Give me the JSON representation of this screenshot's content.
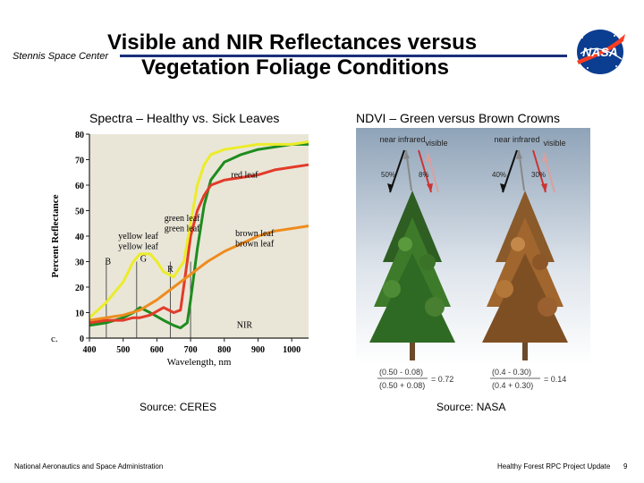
{
  "header": {
    "center": "Stennis Space Center",
    "title_line1": "Visible and NIR Reflectances versus",
    "title_line2": "Vegetation Foliage Conditions",
    "logo_text": "NASA"
  },
  "left_panel": {
    "caption": "Spectra – Healthy vs. Sick Leaves",
    "source": "Source: CERES"
  },
  "right_panel": {
    "caption": "NDVI – Green versus Brown Crowns",
    "source": "Source: NASA",
    "green": {
      "nir_label": "near infrared",
      "vis_label": "visible",
      "nir_pct": "50%",
      "vis_pct": "8%",
      "formula_num": "(0.50 - 0.08)",
      "formula_den": "(0.50 + 0.08)",
      "result": "= 0.72"
    },
    "brown": {
      "nir_label": "near infrared",
      "vis_label": "visible",
      "nir_pct": "40%",
      "vis_pct": "30%",
      "formula_num": "(0.4 - 0.30)",
      "formula_den": "(0.4 + 0.30)",
      "result": "= 0.14"
    }
  },
  "footer": {
    "left": "National Aeronautics and Space Administration",
    "right": "Healthy Forest RPC Project Update",
    "page": "9"
  },
  "chart_data": {
    "type": "line",
    "xlabel": "Wavelength, nm",
    "ylabel": "Percent Reflectance",
    "xlim": [
      400,
      1050
    ],
    "ylim": [
      0,
      80
    ],
    "xticks": [
      "400",
      "500",
      "600",
      "700",
      "800",
      "900",
      "1000"
    ],
    "yticks": [
      "0",
      "10",
      "20",
      "30",
      "40",
      "50",
      "60",
      "70",
      "80"
    ],
    "grid": false,
    "corner_label": "c.",
    "annotations": [
      {
        "text": "red leaf",
        "x": 860,
        "y": 63
      },
      {
        "text": "green leaf",
        "x": 675,
        "y": 46
      },
      {
        "text": "green leaf",
        "x": 675,
        "y": 42
      },
      {
        "text": "yellow leaf",
        "x": 545,
        "y": 39
      },
      {
        "text": "yellow leaf",
        "x": 545,
        "y": 35
      },
      {
        "text": "brown leaf",
        "x": 890,
        "y": 40
      },
      {
        "text": "brown leaf",
        "x": 890,
        "y": 36
      },
      {
        "text": "B",
        "x": 455,
        "y": 29
      },
      {
        "text": "G",
        "x": 560,
        "y": 30
      },
      {
        "text": "R",
        "x": 640,
        "y": 26
      },
      {
        "text": "NIR",
        "x": 860,
        "y": 4
      }
    ],
    "band_lines": [
      450,
      540,
      640,
      700
    ],
    "series": [
      {
        "color": "#1e8c1e",
        "x": [
          400,
          450,
          500,
          530,
          550,
          580,
          620,
          650,
          670,
          690,
          700,
          720,
          740,
          760,
          800,
          850,
          900,
          950,
          1000,
          1050
        ],
        "y": [
          5,
          6,
          8,
          10,
          12,
          10,
          7,
          5,
          4,
          6,
          15,
          35,
          52,
          62,
          69,
          72,
          74,
          75,
          76,
          76
        ]
      },
      {
        "color": "#e23b2a",
        "x": [
          400,
          450,
          500,
          530,
          550,
          580,
          620,
          650,
          670,
          690,
          700,
          720,
          740,
          760,
          800,
          850,
          900,
          950,
          1000,
          1050
        ],
        "y": [
          6,
          7,
          7,
          8,
          8,
          9,
          12,
          10,
          11,
          30,
          40,
          50,
          56,
          60,
          62,
          63,
          64,
          66,
          67,
          68
        ]
      },
      {
        "color": "#ecec2a",
        "x": [
          400,
          450,
          500,
          530,
          550,
          580,
          600,
          620,
          650,
          680,
          700,
          720,
          740,
          760,
          800,
          850,
          900,
          950,
          1000,
          1050
        ],
        "y": [
          8,
          14,
          22,
          30,
          33,
          33,
          30,
          26,
          24,
          30,
          45,
          60,
          68,
          72,
          74,
          75,
          76,
          76,
          76,
          77
        ]
      },
      {
        "color": "#ee8c1e",
        "x": [
          400,
          450,
          500,
          550,
          600,
          650,
          700,
          720,
          750,
          800,
          850,
          900,
          950,
          1000,
          1050
        ],
        "y": [
          7,
          8,
          9,
          11,
          15,
          20,
          25,
          27,
          30,
          34,
          37,
          40,
          42,
          43,
          44
        ]
      }
    ]
  }
}
